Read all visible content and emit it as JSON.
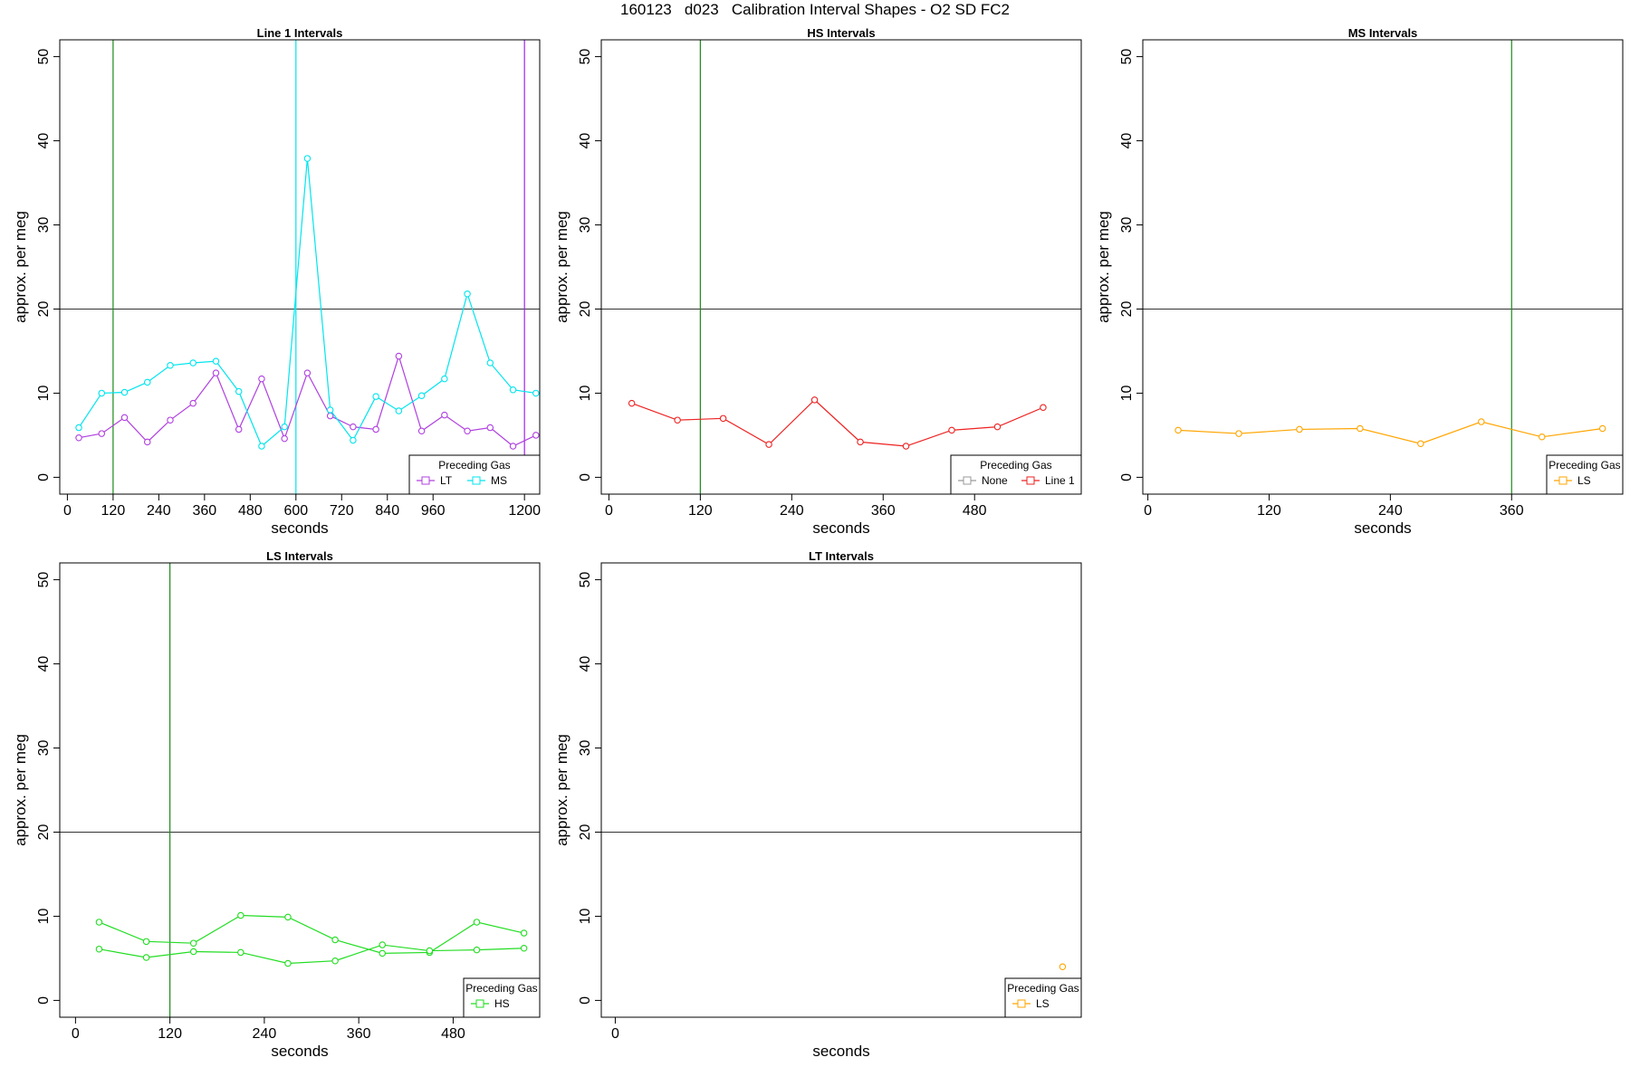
{
  "page_title": "160123   d023   Calibration Interval Shapes - O2 SD FC2",
  "chart_data": [
    {
      "type": "line",
      "title": "Line 1 Intervals",
      "xlabel": "seconds",
      "ylabel": "approx. per meg",
      "xlim": [
        -20,
        1240
      ],
      "ylim": [
        -2,
        52
      ],
      "xticks": [
        0,
        120,
        240,
        360,
        480,
        600,
        720,
        840,
        960,
        1200
      ],
      "yticks": [
        0,
        10,
        20,
        30,
        40,
        50
      ],
      "hline": 20,
      "vlines": [
        {
          "x": 120,
          "color": "#1a8a1a"
        },
        {
          "x": 600,
          "color": "#00e5ee"
        },
        {
          "x": 1200,
          "color": "#a020f0"
        }
      ],
      "legend": {
        "title": "Preceding Gas",
        "entries": [
          {
            "label": "LT",
            "color": "#b040e0"
          },
          {
            "label": "MS",
            "color": "#00e5ee"
          }
        ],
        "position": "bottom-right"
      },
      "series": [
        {
          "name": "LT",
          "color": "#b040e0",
          "x": [
            30,
            90,
            150,
            210,
            270,
            330,
            390,
            450,
            510,
            570,
            630,
            690,
            750,
            810,
            870,
            930,
            990,
            1050,
            1110,
            1170,
            1230
          ],
          "values": [
            4.7,
            5.2,
            7.1,
            4.2,
            6.8,
            8.8,
            12.4,
            5.7,
            11.7,
            4.6,
            12.4,
            7.3,
            6.0,
            5.7,
            14.4,
            5.5,
            7.4,
            5.5,
            5.9,
            3.7,
            5.0
          ]
        },
        {
          "name": "MS",
          "color": "#00e5ee",
          "x": [
            30,
            90,
            150,
            210,
            270,
            330,
            390,
            450,
            510,
            570,
            630,
            690,
            750,
            810,
            870,
            930,
            990,
            1050,
            1110,
            1170,
            1230
          ],
          "values": [
            5.9,
            10.0,
            10.1,
            11.3,
            13.3,
            13.6,
            13.8,
            10.2,
            3.7,
            6.0,
            37.9,
            8.0,
            4.4,
            9.6,
            7.9,
            9.7,
            11.7,
            21.8,
            13.6,
            10.4,
            10.0
          ]
        }
      ]
    },
    {
      "type": "line",
      "title": "HS Intervals",
      "xlabel": "seconds",
      "ylabel": "approx. per meg",
      "xlim": [
        -10,
        620
      ],
      "ylim": [
        -2,
        52
      ],
      "xticks": [
        0,
        120,
        240,
        360,
        480
      ],
      "yticks": [
        0,
        10,
        20,
        30,
        40,
        50
      ],
      "hline": 20,
      "vlines": [
        {
          "x": 120,
          "color": "#1a8a1a"
        }
      ],
      "legend": {
        "title": "Preceding Gas",
        "entries": [
          {
            "label": "None",
            "color": "#999999"
          },
          {
            "label": "Line 1",
            "color": "#ee2222"
          }
        ],
        "position": "bottom-right"
      },
      "series": [
        {
          "name": "Line 1",
          "color": "#ee2222",
          "x": [
            30,
            90,
            150,
            210,
            270,
            330,
            390,
            450,
            510,
            570
          ],
          "values": [
            8.8,
            6.8,
            7.0,
            3.9,
            9.2,
            4.2,
            3.7,
            5.6,
            6.0,
            8.3
          ]
        }
      ]
    },
    {
      "type": "line",
      "title": "MS Intervals",
      "xlabel": "seconds",
      "ylabel": "approx. per meg",
      "xlim": [
        -5,
        470
      ],
      "ylim": [
        -2,
        52
      ],
      "xticks": [
        0,
        120,
        240,
        360
      ],
      "yticks": [
        0,
        10,
        20,
        30,
        40,
        50
      ],
      "hline": 20,
      "vlines": [
        {
          "x": 360,
          "color": "#1a8a1a"
        }
      ],
      "legend": {
        "title": "Preceding Gas",
        "entries": [
          {
            "label": "LS",
            "color": "#ffa500"
          }
        ],
        "position": "bottom-right"
      },
      "series": [
        {
          "name": "LS",
          "color": "#ffa500",
          "x": [
            30,
            90,
            150,
            210,
            270,
            330,
            390,
            450
          ],
          "values": [
            5.6,
            5.2,
            5.7,
            5.8,
            4.0,
            6.6,
            4.8,
            5.8
          ]
        }
      ]
    },
    {
      "type": "line",
      "title": "LS Intervals",
      "xlabel": "seconds",
      "ylabel": "approx. per meg",
      "xlim": [
        -20,
        590
      ],
      "ylim": [
        -2,
        52
      ],
      "xticks": [
        0,
        120,
        240,
        360,
        480
      ],
      "yticks": [
        0,
        10,
        20,
        30,
        40,
        50
      ],
      "hline": 20,
      "vlines": [
        {
          "x": 120,
          "color": "#1a8a1a"
        }
      ],
      "legend": {
        "title": "Preceding Gas",
        "entries": [
          {
            "label": "HS",
            "color": "#22dd22"
          }
        ],
        "position": "bottom-right"
      },
      "series": [
        {
          "name": "HS",
          "color": "#22dd22",
          "x": [
            30,
            90,
            150,
            210,
            270,
            330,
            390,
            450,
            510,
            570
          ],
          "values": [
            9.3,
            7.0,
            6.8,
            10.1,
            9.9,
            7.2,
            5.6,
            5.7,
            9.3,
            8.0
          ]
        },
        {
          "name": "HS",
          "color": "#22dd22",
          "x": [
            30,
            90,
            150,
            210,
            270,
            330,
            390,
            450,
            510,
            570
          ],
          "values": [
            6.1,
            5.1,
            5.8,
            5.7,
            4.4,
            4.7,
            6.6,
            5.9,
            6.0,
            6.2
          ]
        }
      ]
    },
    {
      "type": "line",
      "title": "LT Intervals",
      "xlabel": "seconds",
      "ylabel": "approx. per meg",
      "xlim": [
        -3,
        100
      ],
      "ylim": [
        -2,
        52
      ],
      "xticks": [
        0
      ],
      "yticks": [
        0,
        10,
        20,
        30,
        40,
        50
      ],
      "hline": 20,
      "vlines": [],
      "legend": {
        "title": "Preceding Gas",
        "entries": [
          {
            "label": "LS",
            "color": "#ffa500"
          }
        ],
        "position": "bottom-right"
      },
      "series": [
        {
          "name": "LS",
          "color": "#ffa500",
          "x": [
            96
          ],
          "values": [
            4.0
          ]
        }
      ]
    }
  ]
}
